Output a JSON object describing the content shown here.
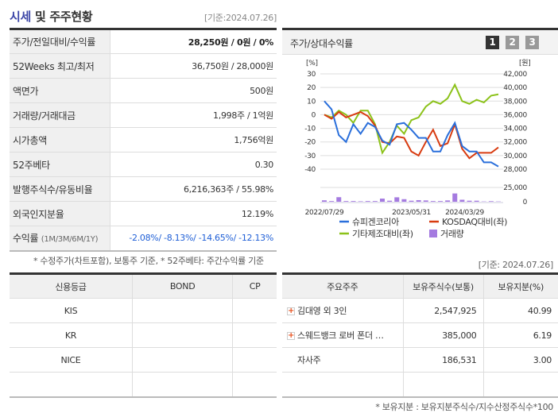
{
  "header": {
    "title_hl": "시세",
    "title_rest": " 및 주주현황",
    "base_date": "[기준:2024.07.26]"
  },
  "summary": [
    {
      "label": "주가/전일대비/수익률",
      "value": "28,250원 / 0원 / 0%"
    },
    {
      "label": "52Weeks 최고/최저",
      "value": "36,750원 / 28,000원"
    },
    {
      "label": "액면가",
      "value": "500원"
    },
    {
      "label": "거래량/거래대금",
      "value": "1,998주 / 1억원"
    },
    {
      "label": "시가총액",
      "value": "1,756억원"
    },
    {
      "label": "52주베타",
      "value": "0.30"
    },
    {
      "label": "발행주식수/유동비율",
      "value": "6,216,363주 / 55.98%"
    },
    {
      "label": "외국인지분율",
      "value": "12.19%"
    }
  ],
  "returns": {
    "label": "수익률",
    "period": "(1M/3M/6M/1Y)",
    "value": "-2.08%/ -8.13%/ -14.65%/ -12.13%"
  },
  "chart_panel": {
    "title": "주가/상대수익률",
    "pages": [
      "1",
      "2",
      "3"
    ],
    "active_page": "1"
  },
  "chart_data": {
    "type": "line",
    "left_unit": "[%]",
    "right_unit": "[원]",
    "left_ticks": [
      "30",
      "20",
      "10",
      "0",
      "-10",
      "-20",
      "-30",
      "-40"
    ],
    "right_ticks": [
      "42,000",
      "40,000",
      "38,000",
      "36,000",
      "34,000",
      "32,000",
      "30,000",
      "28,000"
    ],
    "volume_ticks": [
      "25,000",
      "0"
    ],
    "x_labels": [
      "2022/07/29",
      "2023/05/31",
      "2024/03/29"
    ],
    "ylim": [
      -40,
      30
    ],
    "series": [
      {
        "name": "슈피겐코리아",
        "color": "#2a6fdb",
        "values": [
          10,
          4,
          -15,
          -20,
          -7,
          -14,
          -6,
          -9,
          -19,
          -22,
          -7,
          -6,
          -11,
          -17,
          -17,
          -27,
          -27,
          -15,
          -6,
          -23,
          -27,
          -27,
          -35,
          -35,
          -38
        ]
      },
      {
        "name": "KOSDAQ대비(좌)",
        "color": "#d83b10",
        "values": [
          0,
          -3,
          2,
          -2,
          0,
          2,
          -1,
          -8,
          -20,
          -21,
          -16,
          -17,
          -27,
          -30,
          -20,
          -11,
          -23,
          -21,
          -7,
          -25,
          -32,
          -28,
          -28,
          -28,
          -24
        ]
      },
      {
        "name": "기타제조대비(좌)",
        "color": "#8cc21a",
        "values": [
          0,
          -2,
          3,
          0,
          -6,
          3,
          3,
          -7,
          -28,
          -20,
          -8,
          -14,
          -4,
          -2,
          6,
          10,
          8,
          12,
          22,
          10,
          8,
          11,
          9,
          14,
          15
        ]
      }
    ],
    "volume": {
      "name": "거래량",
      "color": "#a57be0",
      "ylim": [
        0,
        25000
      ],
      "values": [
        2500,
        1200,
        8000,
        1200,
        1200,
        800,
        1200,
        1200,
        5500,
        1800,
        7800,
        4500,
        1800,
        2800,
        2300,
        1200,
        1200,
        2300,
        14500,
        3500,
        1800,
        1800,
        500,
        1000,
        500
      ]
    }
  },
  "notes": {
    "left": "* 수정주가(차트포함), 보통주 기준, * 52주베타: 주간수익률 기준",
    "right": "[기준: 2024.07.26]",
    "bottom": "* 보유지분 : 보유지분주식수/지수산정주식수*100"
  },
  "credit": {
    "headers": [
      "신용등급",
      "BOND",
      "CP"
    ],
    "rows": [
      [
        "KIS",
        "",
        ""
      ],
      [
        "KR",
        "",
        ""
      ],
      [
        "NICE",
        "",
        ""
      ],
      [
        "",
        "",
        ""
      ]
    ]
  },
  "holders": {
    "headers": [
      "주요주주",
      "보유주식수(보통)",
      "보유지분(%)"
    ],
    "rows": [
      {
        "name": "김대영 외 3인",
        "shares": "2,547,925",
        "pct": "40.99",
        "expand": true
      },
      {
        "name": "스웨드뱅크 로버 폰더 …",
        "shares": "385,000",
        "pct": "6.19",
        "expand": true
      },
      {
        "name": "자사주",
        "shares": "186,531",
        "pct": "3.00",
        "expand": false
      },
      {
        "name": "",
        "shares": "",
        "pct": "",
        "expand": false
      }
    ]
  }
}
